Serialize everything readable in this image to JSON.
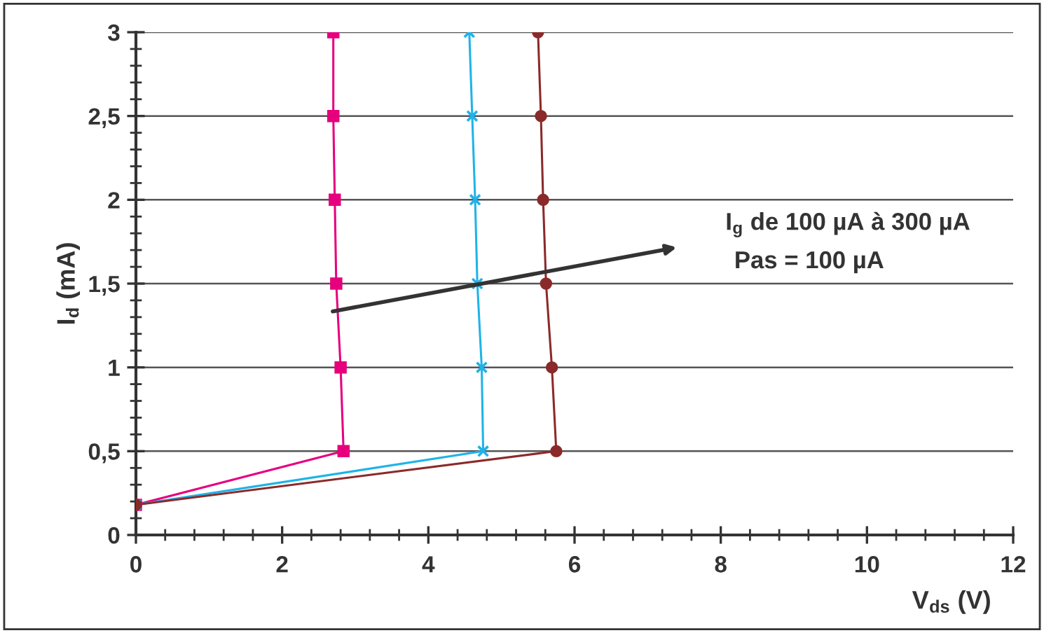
{
  "chart_data": {
    "type": "line",
    "xlabel": "V$_{ds}$ (V)",
    "ylabel": "I$_{d}$ (mA)",
    "annotations": [
      "I$_{g}$ de 100 µA à 300 µA",
      "Pas = 100 µA"
    ],
    "series": [
      {
        "color": "#e6007e",
        "marker": "square",
        "x": [
          0,
          2.84,
          2.8,
          2.74,
          2.72,
          2.7,
          2.7
        ],
        "values": [
          0.18,
          0.5,
          1,
          1.5,
          2,
          2.5,
          3
        ]
      },
      {
        "color": "#1fb3e8",
        "marker": "cross",
        "x": [
          0,
          4.75,
          4.73,
          4.67,
          4.64,
          4.6,
          4.56
        ],
        "values": [
          0.18,
          0.5,
          1,
          1.5,
          2,
          2.5,
          3
        ]
      },
      {
        "color": "#8b2a2a",
        "marker": "circle",
        "x": [
          0,
          5.75,
          5.69,
          5.61,
          5.57,
          5.54,
          5.5
        ],
        "values": [
          0.18,
          0.5,
          1,
          1.5,
          2,
          2.5,
          3
        ]
      }
    ],
    "xlim": [
      0,
      12
    ],
    "ylim": [
      0,
      3
    ],
    "xticks": [
      0,
      2,
      4,
      6,
      8,
      10,
      12
    ],
    "yticks": [
      0,
      {
        "value": 0.5,
        "label": "0,5"
      },
      1,
      {
        "value": 1.5,
        "label": "1,5"
      },
      2,
      {
        "value": 2.5,
        "label": "2,5"
      },
      3
    ],
    "grid": "y",
    "legend": false
  }
}
